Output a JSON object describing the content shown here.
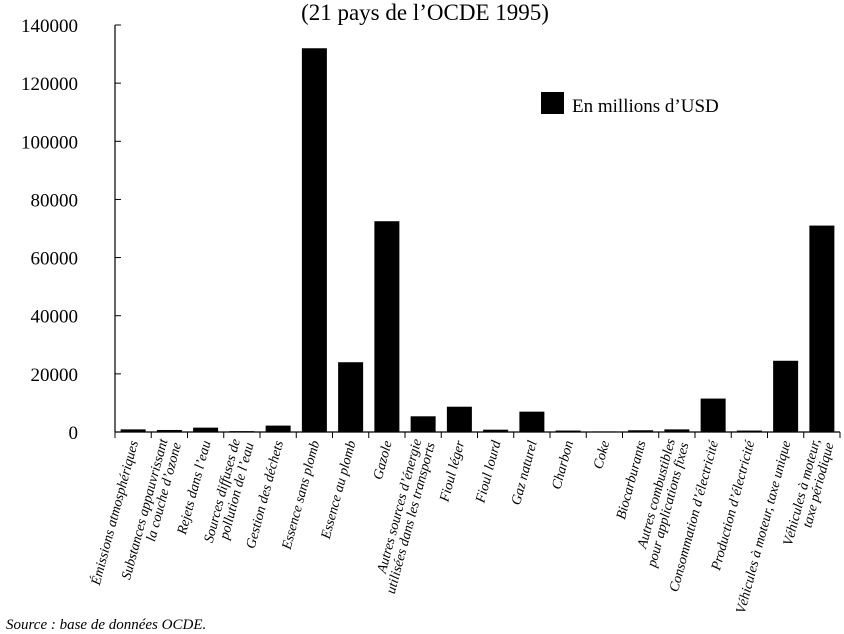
{
  "chart_data": {
    "type": "bar",
    "title": "(21 pays de l’OCDE 1995)",
    "xlabel": "",
    "ylabel": "",
    "ylim": [
      0,
      140000
    ],
    "yticks": [
      0,
      20000,
      40000,
      60000,
      80000,
      100000,
      120000,
      140000
    ],
    "grid": false,
    "legend_position": "top-right",
    "categories": [
      "Émissions atmosphériques",
      "Substances appauvrissant la couche d’ozone",
      "Rejets dans l’eau",
      "Sources diffuses de pollution de l’eau",
      "Gestion des déchets",
      "Essence sans plomb",
      "Essence au plomb",
      "Gazole",
      "Autres sources d’énergie utilisées dans les transports",
      "Fioul léger",
      "Fioul lourd",
      "Gaz naturel",
      "Charbon",
      "Coke",
      "Biocarburants",
      "Autres combustibles pour applications fixes",
      "Consommation d’électricité",
      "Production d’électricité",
      "Véhicules à moteur, taxe unique",
      "Véhicules à moteur, taxe périodique"
    ],
    "category_lines": [
      [
        "Émissions atmosphériques"
      ],
      [
        "Substances appauvrissant",
        "la couche d’ozone"
      ],
      [
        "Rejets dans l’eau"
      ],
      [
        "Sources diffuses de",
        "pollution de l’eau"
      ],
      [
        "Gestion des déchets"
      ],
      [
        "Essence sans plomb"
      ],
      [
        "Essence au plomb"
      ],
      [
        "Gazole"
      ],
      [
        "Autres sources d’énergie",
        "utilisées dans les transports"
      ],
      [
        "Fioul léger"
      ],
      [
        "Fioul lourd"
      ],
      [
        "Gaz naturel"
      ],
      [
        "Charbon"
      ],
      [
        "Coke"
      ],
      [
        "Biocarburants"
      ],
      [
        "Autres combustibles",
        "pour applications fixes"
      ],
      [
        "Consommation d’électricité"
      ],
      [
        "Production d’électricité"
      ],
      [
        "Véhicules à moteur, taxe unique"
      ],
      [
        "Véhicules à moteur,",
        "taxe périodique"
      ]
    ],
    "series": [
      {
        "name": "En millions d’USD",
        "color": "#000000",
        "values": [
          900,
          700,
          1500,
          300,
          2200,
          132000,
          24000,
          72500,
          5400,
          8700,
          800,
          7000,
          500,
          200,
          600,
          900,
          11500,
          500,
          24500,
          71000
        ]
      }
    ]
  },
  "source_text": "Source : base de données OCDE."
}
